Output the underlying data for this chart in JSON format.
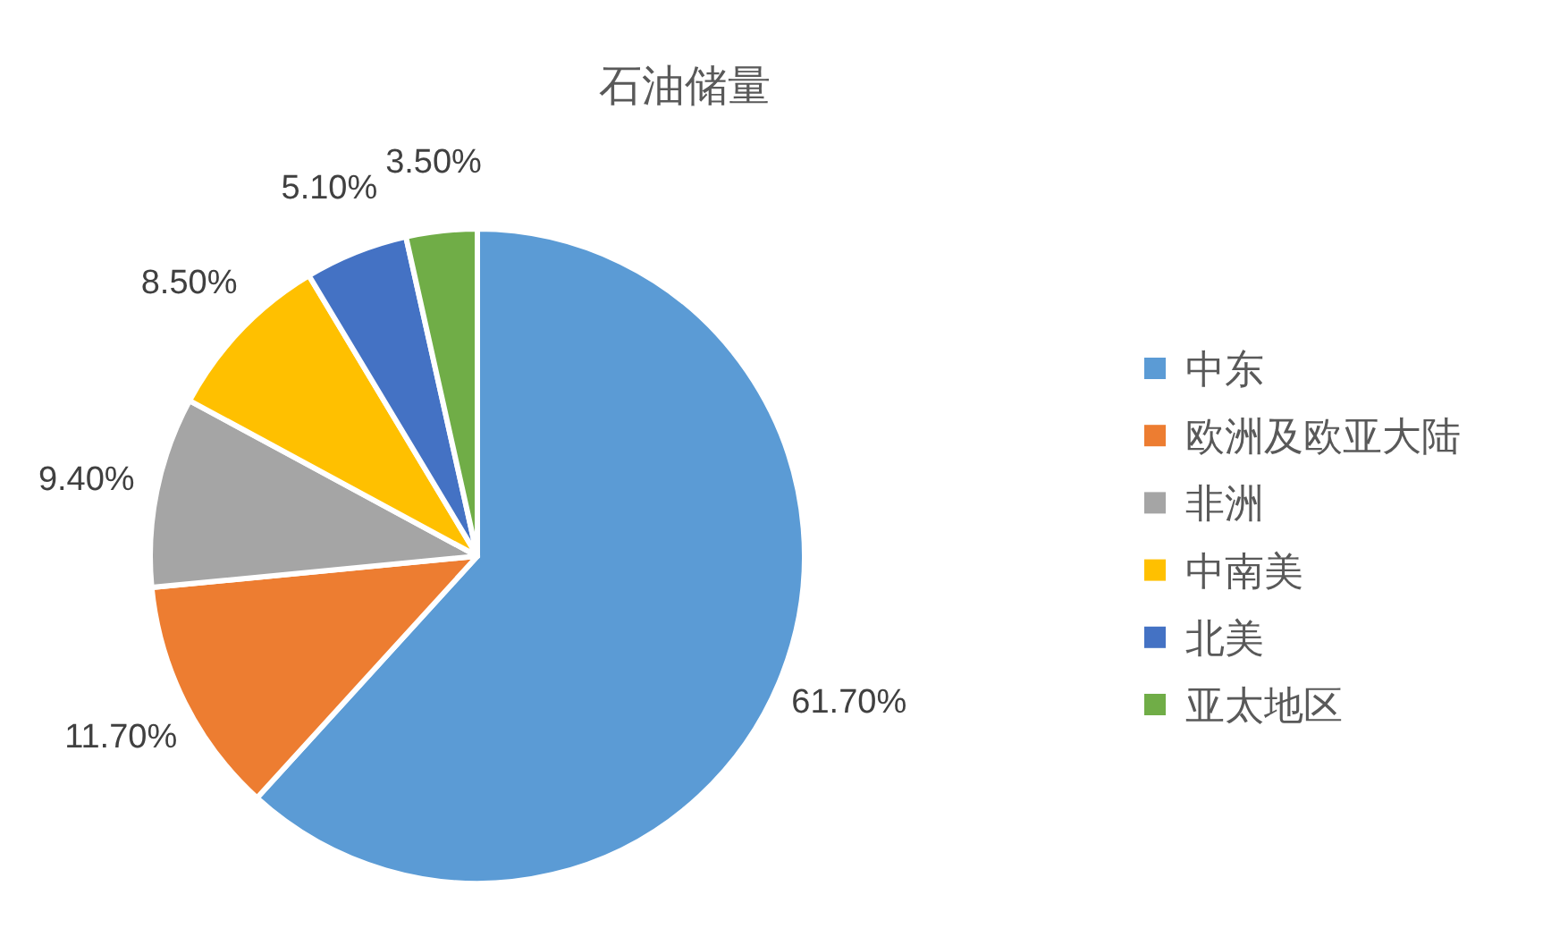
{
  "chart_data": {
    "type": "pie",
    "title": "石油储量",
    "categories": [
      "中东",
      "欧洲及欧亚大陆",
      "非洲",
      "中南美",
      "北美",
      "亚太地区"
    ],
    "values": [
      61.7,
      11.7,
      9.4,
      8.5,
      5.1,
      3.5
    ],
    "colors": [
      "#5b9bd5",
      "#ed7d31",
      "#a5a5a5",
      "#ffc000",
      "#4472c4",
      "#70ad47"
    ],
    "value_labels": [
      "61.70%",
      "11.70%",
      "9.40%",
      "8.50%",
      "5.10%",
      "3.50%"
    ],
    "legend": "right"
  }
}
